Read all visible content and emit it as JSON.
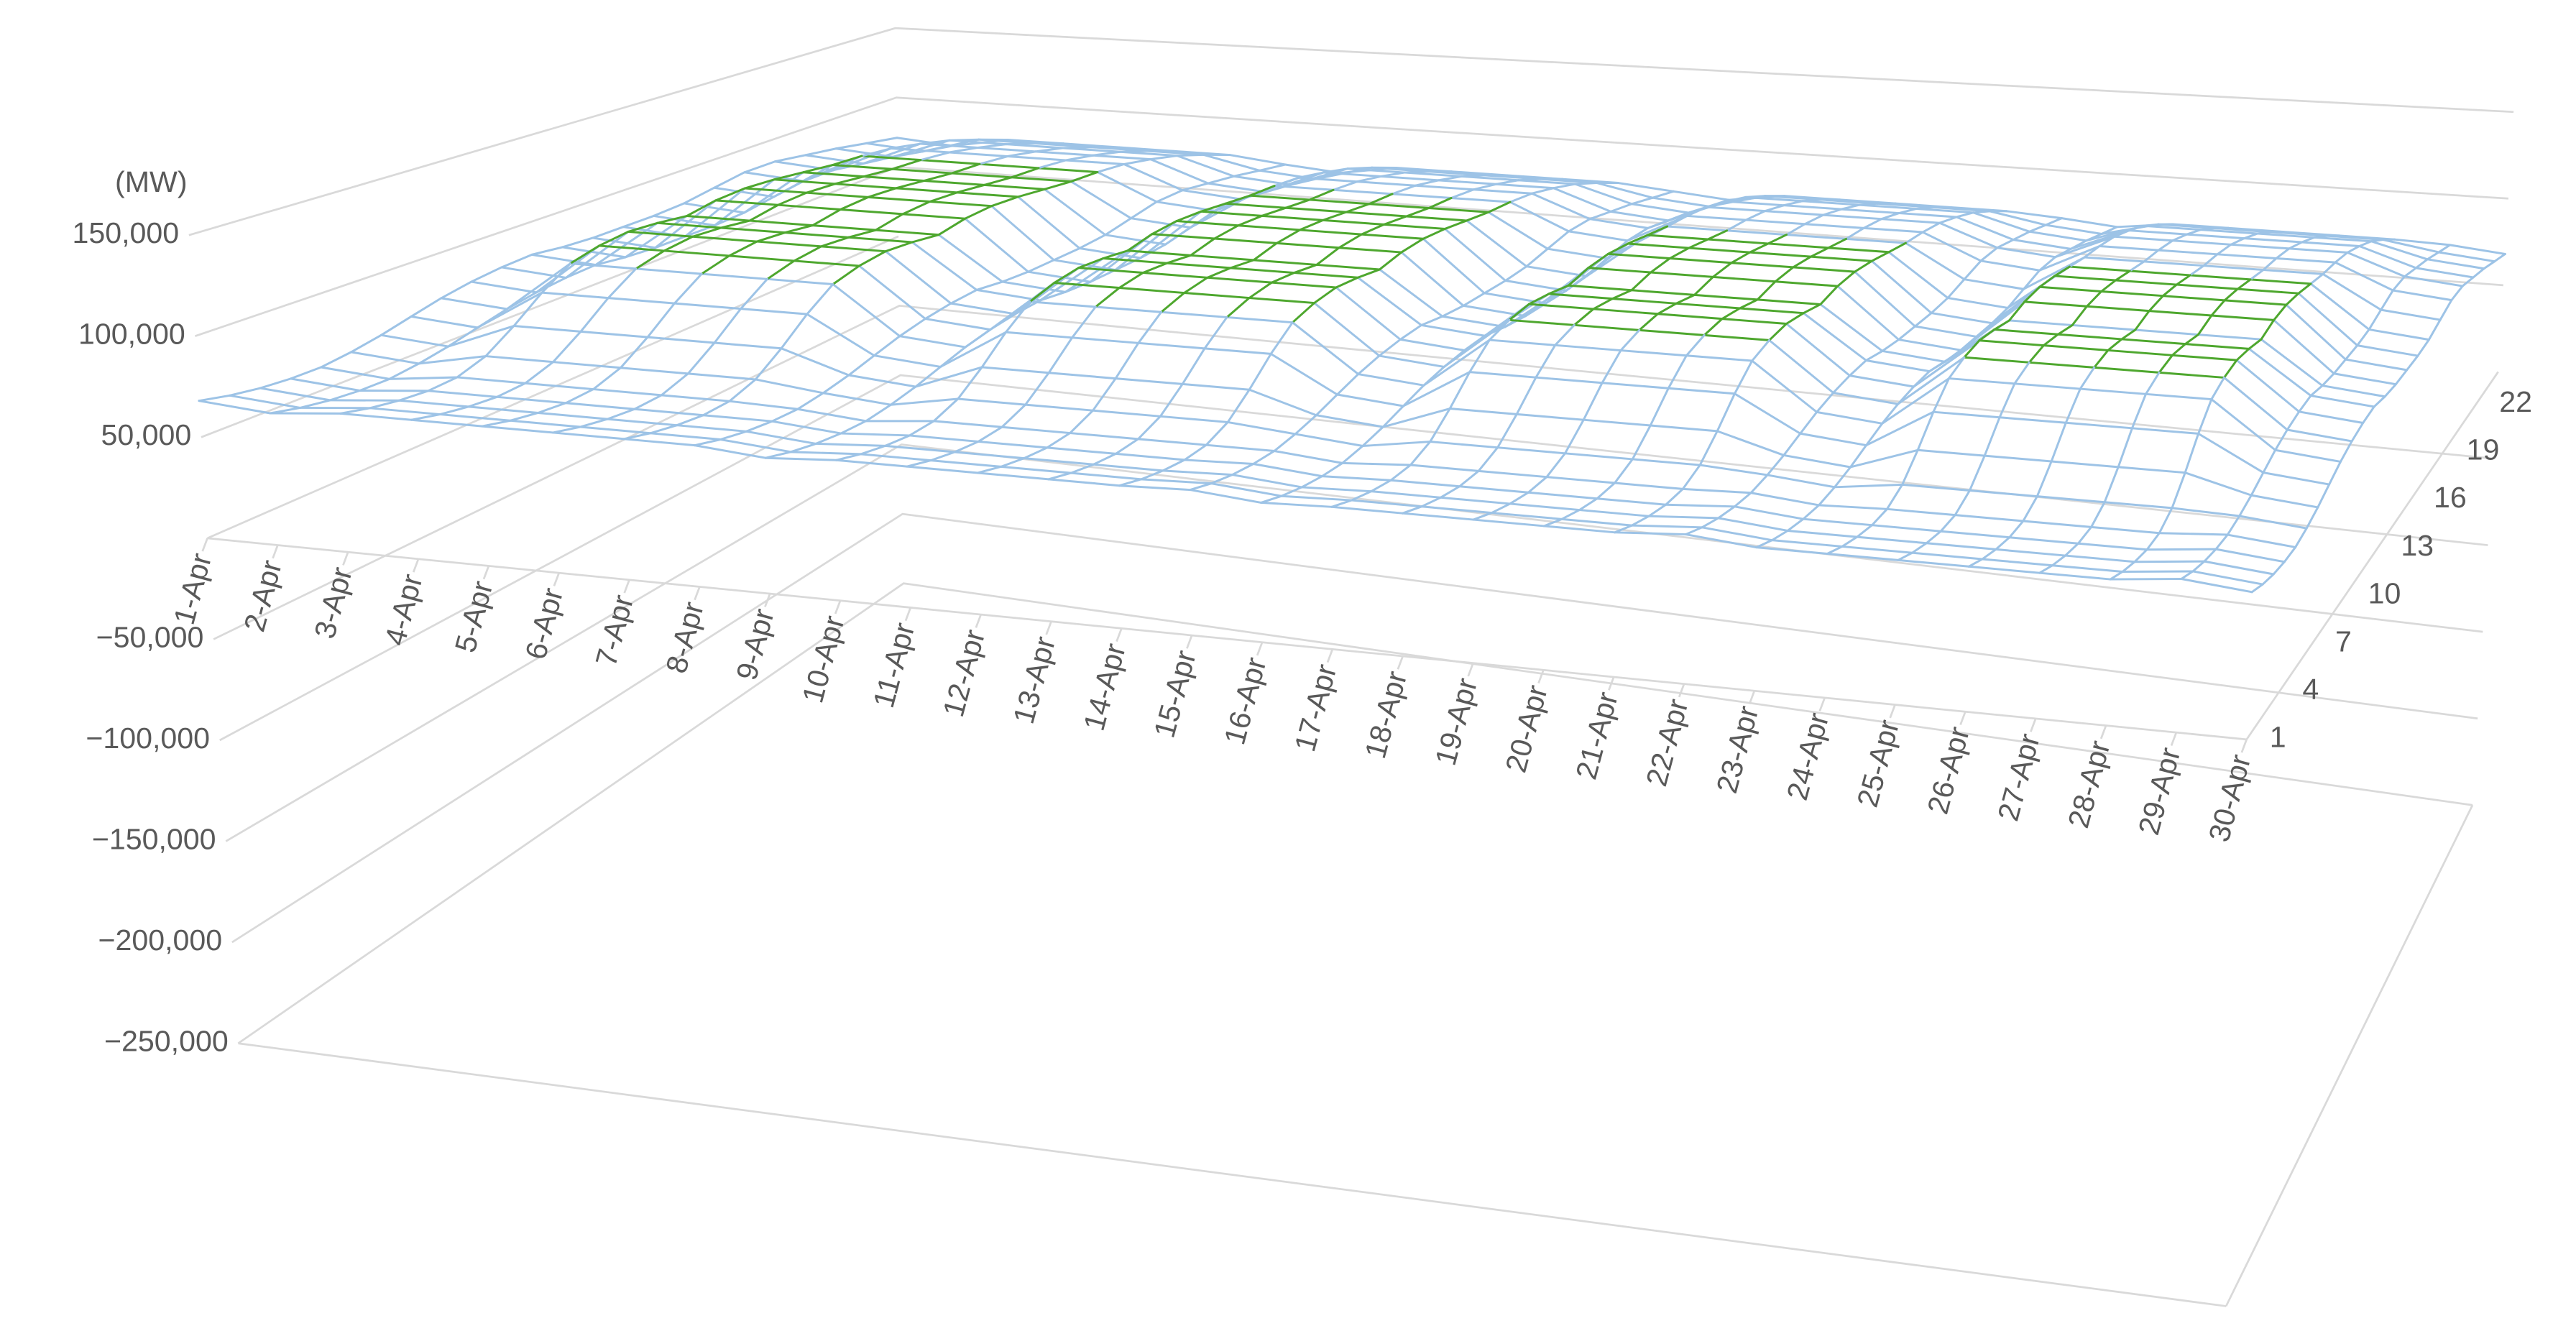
{
  "chart_data": {
    "type": "surface",
    "y_axis_title": "(MW)",
    "categories": [
      "1-Apr",
      "2-Apr",
      "3-Apr",
      "4-Apr",
      "5-Apr",
      "6-Apr",
      "7-Apr",
      "8-Apr",
      "9-Apr",
      "10-Apr",
      "11-Apr",
      "12-Apr",
      "13-Apr",
      "14-Apr",
      "15-Apr",
      "16-Apr",
      "17-Apr",
      "18-Apr",
      "19-Apr",
      "20-Apr",
      "21-Apr",
      "22-Apr",
      "23-Apr",
      "24-Apr",
      "25-Apr",
      "26-Apr",
      "27-Apr",
      "28-Apr",
      "29-Apr",
      "30-Apr"
    ],
    "depth_categories": [
      "1",
      null,
      null,
      "4",
      null,
      null,
      "7",
      null,
      null,
      "10",
      null,
      null,
      "13",
      null,
      null,
      "16",
      null,
      null,
      "19",
      null,
      null,
      "22",
      null,
      null
    ],
    "ylim": [
      -250000,
      150000
    ],
    "yticks": [
      {
        "value": 150000,
        "label": "150,000"
      },
      {
        "value": 100000,
        "label": "100,000"
      },
      {
        "value": 50000,
        "label": "50,000"
      },
      {
        "value": -50000,
        "label": "−50,000"
      },
      {
        "value": -100000,
        "label": "−100,000"
      },
      {
        "value": -150000,
        "label": "−150,000"
      },
      {
        "value": -200000,
        "label": "−200,000"
      },
      {
        "value": -250000,
        "label": "−250,000"
      }
    ],
    "grid": true,
    "color_bands": [
      {
        "from": 50000,
        "to": 100000,
        "color": "#9dc3e6"
      },
      {
        "from": 100000,
        "to": 150000,
        "color": "#4ea72e"
      }
    ],
    "series": [
      {
        "values": [
          68000,
          65000,
          68000,
          68000,
          68000,
          68000,
          68000,
          68000,
          65000,
          67000,
          67000,
          67000,
          67000,
          67000,
          68000,
          65000,
          66000,
          66000,
          66000,
          66000,
          66000,
          68000,
          65000,
          65000,
          65000,
          65000,
          65000,
          65000,
          68000,
          65000
        ]
      },
      {
        "values": [
          65000,
          62000,
          65000,
          65000,
          65000,
          65000,
          65000,
          65000,
          62000,
          64000,
          64000,
          64000,
          64000,
          64000,
          65000,
          62000,
          63000,
          63000,
          63000,
          63000,
          63000,
          65000,
          62000,
          62000,
          62000,
          62000,
          62000,
          62000,
          65000,
          62000
        ]
      },
      {
        "values": [
          63000,
          60000,
          63000,
          63000,
          63000,
          63000,
          63000,
          63000,
          60000,
          62000,
          62000,
          62000,
          62000,
          62000,
          63000,
          60000,
          61000,
          61000,
          61000,
          61000,
          61000,
          63000,
          60000,
          60000,
          60000,
          60000,
          60000,
          60000,
          63000,
          60000
        ]
      },
      {
        "values": [
          62000,
          59000,
          62000,
          62000,
          62000,
          62000,
          62000,
          62000,
          59000,
          61000,
          61000,
          61000,
          61000,
          61000,
          62000,
          59000,
          60000,
          60000,
          60000,
          60000,
          60000,
          62000,
          59000,
          59000,
          59000,
          59000,
          59000,
          59000,
          62000,
          59000
        ]
      },
      {
        "values": [
          62000,
          59000,
          63000,
          63000,
          63000,
          63000,
          63000,
          62000,
          59000,
          62000,
          62000,
          62000,
          62000,
          62000,
          62000,
          59000,
          61000,
          61000,
          61000,
          61000,
          61000,
          62000,
          59000,
          60000,
          60000,
          60000,
          60000,
          60000,
          62000,
          59000
        ]
      },
      {
        "values": [
          64000,
          61000,
          68000,
          68000,
          68000,
          68000,
          68000,
          64000,
          61000,
          67000,
          67000,
          67000,
          67000,
          67000,
          64000,
          61000,
          66000,
          66000,
          66000,
          66000,
          66000,
          64000,
          61000,
          65000,
          65000,
          65000,
          65000,
          65000,
          64000,
          61000
        ]
      },
      {
        "values": [
          67000,
          64000,
          78000,
          78000,
          78000,
          78000,
          78000,
          67000,
          64000,
          77000,
          77000,
          77000,
          77000,
          77000,
          67000,
          64000,
          76000,
          76000,
          76000,
          76000,
          76000,
          67000,
          64000,
          75000,
          75000,
          75000,
          75000,
          75000,
          67000,
          64000
        ]
      },
      {
        "values": [
          71000,
          68000,
          90000,
          90000,
          90000,
          90000,
          90000,
          71000,
          68000,
          89000,
          89000,
          89000,
          89000,
          89000,
          71000,
          68000,
          88000,
          88000,
          88000,
          88000,
          88000,
          71000,
          68000,
          87000,
          87000,
          87000,
          87000,
          87000,
          71000,
          68000
        ]
      },
      {
        "values": [
          75000,
          72000,
          100000,
          100000,
          100000,
          100000,
          100000,
          75000,
          72000,
          99000,
          99000,
          99000,
          99000,
          99000,
          75000,
          72000,
          98000,
          98000,
          98000,
          98000,
          98000,
          75000,
          72000,
          97000,
          97000,
          97000,
          97000,
          97000,
          75000,
          72000
        ]
      },
      {
        "values": [
          78000,
          75000,
          104000,
          104000,
          104000,
          104000,
          104000,
          78000,
          75000,
          103000,
          103000,
          103000,
          103000,
          103000,
          78000,
          75000,
          102000,
          102000,
          102000,
          102000,
          102000,
          78000,
          75000,
          101000,
          101000,
          101000,
          101000,
          101000,
          78000,
          75000
        ]
      },
      {
        "values": [
          80000,
          77000,
          106000,
          106000,
          106000,
          106000,
          106000,
          80000,
          77000,
          105000,
          105000,
          105000,
          105000,
          105000,
          80000,
          77000,
          104000,
          104000,
          104000,
          104000,
          104000,
          80000,
          77000,
          103000,
          103000,
          103000,
          103000,
          103000,
          80000,
          77000
        ]
      },
      {
        "values": [
          81000,
          78000,
          105000,
          105000,
          105000,
          105000,
          105000,
          81000,
          78000,
          104000,
          104000,
          104000,
          104000,
          104000,
          81000,
          78000,
          103000,
          103000,
          103000,
          103000,
          103000,
          81000,
          78000,
          102000,
          102000,
          102000,
          102000,
          102000,
          81000,
          78000
        ]
      },
      {
        "values": [
          79000,
          76000,
          103000,
          103000,
          103000,
          103000,
          103000,
          79000,
          76000,
          102000,
          102000,
          102000,
          102000,
          102000,
          79000,
          76000,
          101000,
          101000,
          101000,
          101000,
          101000,
          79000,
          76000,
          100000,
          100000,
          100000,
          100000,
          100000,
          79000,
          76000
        ]
      },
      {
        "values": [
          78000,
          75000,
          106000,
          106000,
          106000,
          106000,
          106000,
          78000,
          75000,
          105000,
          105000,
          105000,
          105000,
          105000,
          78000,
          75000,
          104000,
          104000,
          104000,
          104000,
          104000,
          78000,
          75000,
          103000,
          103000,
          103000,
          103000,
          103000,
          78000,
          75000
        ]
      },
      {
        "values": [
          78000,
          75000,
          107000,
          107000,
          107000,
          107000,
          107000,
          78000,
          75000,
          106000,
          106000,
          106000,
          106000,
          106000,
          78000,
          75000,
          105000,
          105000,
          105000,
          105000,
          105000,
          78000,
          75000,
          104000,
          104000,
          104000,
          104000,
          104000,
          78000,
          75000
        ]
      },
      {
        "values": [
          78000,
          75000,
          106000,
          106000,
          106000,
          106000,
          106000,
          78000,
          75000,
          105000,
          105000,
          105000,
          105000,
          105000,
          78000,
          75000,
          104000,
          104000,
          104000,
          104000,
          104000,
          78000,
          75000,
          103000,
          103000,
          103000,
          103000,
          103000,
          78000,
          75000
        ]
      },
      {
        "values": [
          79000,
          76000,
          104000,
          104000,
          104000,
          104000,
          104000,
          79000,
          76000,
          103000,
          103000,
          103000,
          103000,
          103000,
          79000,
          76000,
          102000,
          102000,
          102000,
          102000,
          102000,
          79000,
          76000,
          101000,
          101000,
          101000,
          101000,
          101000,
          79000,
          76000
        ]
      },
      {
        "values": [
          82000,
          79000,
          102000,
          102000,
          102000,
          102000,
          102000,
          82000,
          79000,
          101000,
          101000,
          101000,
          101000,
          101000,
          82000,
          79000,
          100000,
          100000,
          100000,
          100000,
          100000,
          82000,
          79000,
          99000,
          99000,
          99000,
          99000,
          99000,
          82000,
          79000
        ]
      },
      {
        "values": [
          85000,
          82000,
          101000,
          101000,
          101000,
          101000,
          101000,
          85000,
          82000,
          100000,
          100000,
          100000,
          100000,
          100000,
          85000,
          82000,
          99000,
          99000,
          99000,
          99000,
          99000,
          85000,
          82000,
          98000,
          98000,
          98000,
          98000,
          98000,
          85000,
          82000
        ]
      },
      {
        "values": [
          85000,
          82000,
          99000,
          99000,
          99000,
          99000,
          99000,
          85000,
          82000,
          98000,
          98000,
          98000,
          98000,
          98000,
          85000,
          82000,
          97000,
          97000,
          97000,
          97000,
          97000,
          85000,
          82000,
          96000,
          96000,
          96000,
          96000,
          96000,
          85000,
          82000
        ]
      },
      {
        "values": [
          82000,
          79000,
          95000,
          95000,
          95000,
          95000,
          95000,
          82000,
          79000,
          94000,
          94000,
          94000,
          94000,
          94000,
          82000,
          79000,
          93000,
          93000,
          93000,
          93000,
          93000,
          82000,
          79000,
          92000,
          92000,
          92000,
          92000,
          92000,
          82000,
          79000
        ]
      },
      {
        "values": [
          79000,
          76000,
          90000,
          90000,
          90000,
          90000,
          90000,
          79000,
          76000,
          89000,
          89000,
          89000,
          89000,
          89000,
          79000,
          76000,
          88000,
          88000,
          88000,
          88000,
          88000,
          79000,
          76000,
          87000,
          87000,
          87000,
          87000,
          87000,
          79000,
          76000
        ]
      },
      {
        "values": [
          75000,
          72000,
          83000,
          83000,
          83000,
          83000,
          83000,
          75000,
          72000,
          82000,
          82000,
          82000,
          82000,
          82000,
          75000,
          72000,
          81000,
          81000,
          81000,
          81000,
          81000,
          75000,
          72000,
          80000,
          80000,
          80000,
          80000,
          80000,
          75000,
          72000
        ]
      },
      {
        "values": [
          71000,
          68000,
          75000,
          75000,
          75000,
          75000,
          75000,
          71000,
          68000,
          74000,
          74000,
          74000,
          74000,
          74000,
          71000,
          68000,
          73000,
          73000,
          73000,
          73000,
          73000,
          71000,
          68000,
          72000,
          72000,
          72000,
          72000,
          72000,
          71000,
          68000
        ]
      }
    ]
  }
}
